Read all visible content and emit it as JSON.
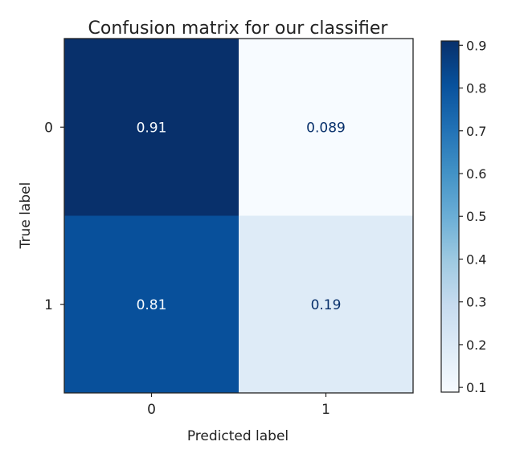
{
  "chart_data": {
    "type": "heatmap",
    "title": "Confusion matrix for our classifier",
    "xlabel": "Predicted label",
    "ylabel": "True label",
    "x_categories": [
      "0",
      "1"
    ],
    "y_categories": [
      "0",
      "1"
    ],
    "values": [
      [
        0.91,
        0.089
      ],
      [
        0.81,
        0.19
      ]
    ],
    "cell_labels": [
      [
        "0.91",
        "0.089"
      ],
      [
        "0.81",
        "0.19"
      ]
    ],
    "colormap": "Blues",
    "colorbar": {
      "range": [
        0.089,
        0.91
      ],
      "ticks": [
        0.1,
        0.2,
        0.3,
        0.4,
        0.5,
        0.6,
        0.7,
        0.8,
        0.9
      ],
      "tick_labels": [
        "0.1",
        "0.2",
        "0.3",
        "0.4",
        "0.5",
        "0.6",
        "0.7",
        "0.8",
        "0.9"
      ]
    },
    "grid": false
  }
}
